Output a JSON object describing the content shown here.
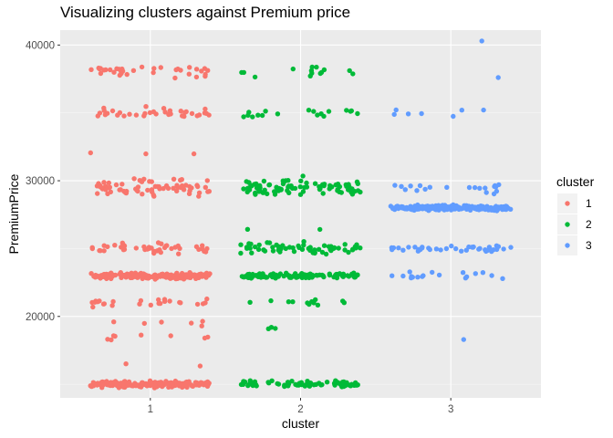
{
  "chart_data": {
    "type": "scatter",
    "title": "Visualizing clusters against Premium price",
    "xlabel": "cluster",
    "ylabel": "PremiumPrice",
    "x_ticks": [
      "1",
      "2",
      "3"
    ],
    "y_ticks": [
      20000,
      30000,
      40000
    ],
    "y_tick_labels": [
      "20000",
      "30000",
      "40000"
    ],
    "xlim": [
      0.4,
      3.6
    ],
    "ylim": [
      14000,
      41100
    ],
    "jitter": true,
    "grid": true,
    "legend": {
      "title": "cluster",
      "placement": "right"
    },
    "series": [
      {
        "name": "1",
        "color": "#F8766D",
        "x": 1,
        "levels": [
          {
            "y": 15000,
            "count": 200,
            "spread": 320
          },
          {
            "y": 16500,
            "count": 2,
            "spread": 200
          },
          {
            "y": 18500,
            "count": 8,
            "spread": 500
          },
          {
            "y": 19500,
            "count": 6,
            "spread": 400
          },
          {
            "y": 21000,
            "count": 25,
            "spread": 450
          },
          {
            "y": 23000,
            "count": 180,
            "spread": 300
          },
          {
            "y": 25000,
            "count": 45,
            "spread": 550
          },
          {
            "y": 29500,
            "count": 70,
            "spread": 900
          },
          {
            "y": 32000,
            "count": 3,
            "spread": 300
          },
          {
            "y": 35000,
            "count": 35,
            "spread": 550
          },
          {
            "y": 38000,
            "count": 35,
            "spread": 700
          }
        ]
      },
      {
        "name": "2",
        "color": "#00BA38",
        "x": 2,
        "levels": [
          {
            "y": 15000,
            "count": 80,
            "spread": 350
          },
          {
            "y": 19000,
            "count": 3,
            "spread": 300
          },
          {
            "y": 21000,
            "count": 12,
            "spread": 450
          },
          {
            "y": 23000,
            "count": 110,
            "spread": 300
          },
          {
            "y": 25000,
            "count": 60,
            "spread": 600
          },
          {
            "y": 26500,
            "count": 2,
            "spread": 200
          },
          {
            "y": 29500,
            "count": 85,
            "spread": 1000
          },
          {
            "y": 35000,
            "count": 18,
            "spread": 450
          },
          {
            "y": 38000,
            "count": 14,
            "spread": 500
          }
        ]
      },
      {
        "name": "3",
        "color": "#619CFF",
        "x": 3,
        "levels": [
          {
            "y": 18300,
            "count": 1,
            "spread": 0
          },
          {
            "y": 23000,
            "count": 18,
            "spread": 400
          },
          {
            "y": 25000,
            "count": 40,
            "spread": 350
          },
          {
            "y": 28000,
            "count": 200,
            "spread": 300
          },
          {
            "y": 29500,
            "count": 20,
            "spread": 600
          },
          {
            "y": 35000,
            "count": 7,
            "spread": 500
          },
          {
            "y": 37600,
            "count": 1,
            "spread": 0
          },
          {
            "y": 40300,
            "count": 1,
            "spread": 0
          }
        ]
      }
    ]
  }
}
